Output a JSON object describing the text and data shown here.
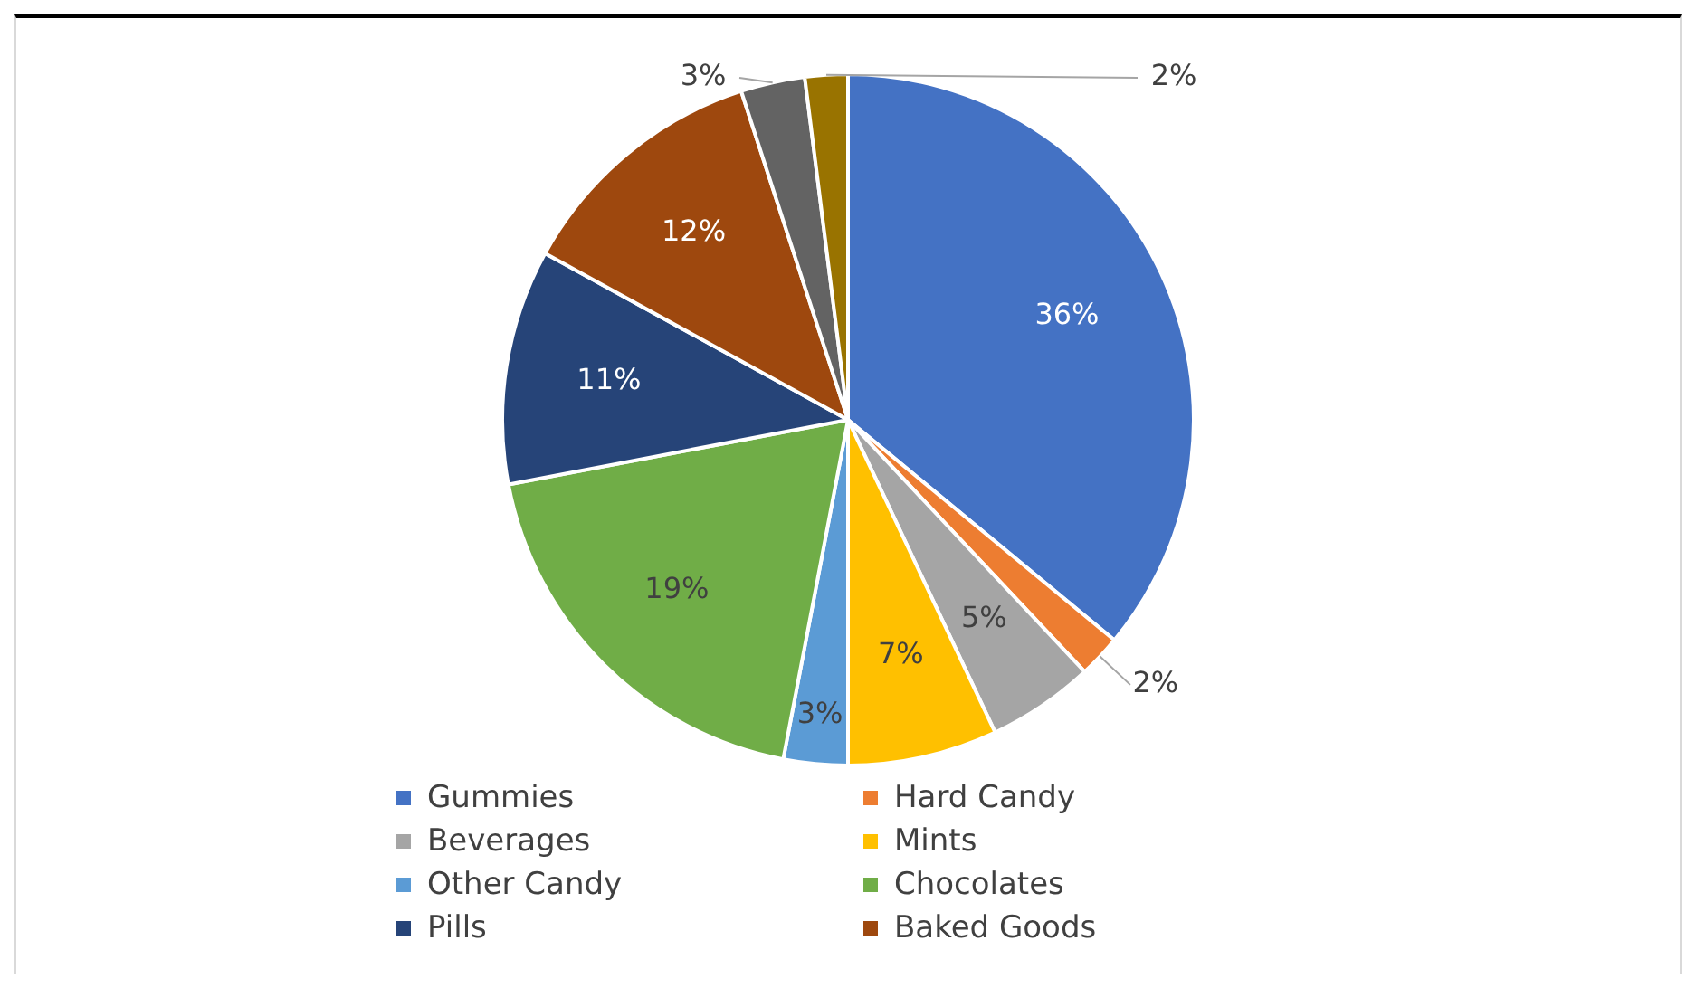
{
  "chart_data": {
    "type": "pie",
    "categories": [
      "Gummies",
      "Hard Candy",
      "Beverages",
      "Mints",
      "Other Candy",
      "Chocolates",
      "Pills",
      "Baked Goods",
      null,
      null
    ],
    "values": [
      36,
      2,
      5,
      7,
      3,
      19,
      11,
      12,
      3,
      2
    ],
    "colors": [
      "#4472c4",
      "#ed7d31",
      "#a5a5a5",
      "#ffc000",
      "#5b9bd5",
      "#70ad47",
      "#264478",
      "#9e480e",
      "#636363",
      "#997300"
    ],
    "value_labels": [
      "36%",
      "2%",
      "5%",
      "7%",
      "3%",
      "19%",
      "11%",
      "12%",
      "3%",
      "2%"
    ],
    "legend": "bottom"
  }
}
